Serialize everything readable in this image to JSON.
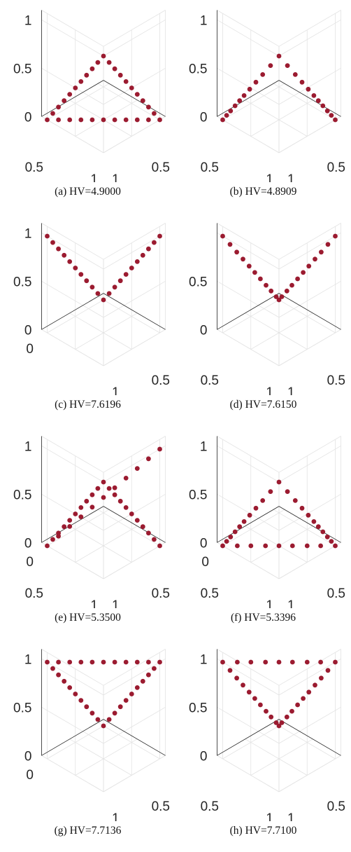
{
  "style": {
    "marker_color": "#9b1b30"
  },
  "captions": [
    "(a) HV=4.9000",
    "(b) HV=4.8909",
    "(c) HV=7.6196",
    "(d) HV=7.6150",
    "(e) HV=5.3500",
    "(f) HV=5.3396",
    "(g) HV=7.7136",
    "(h) HV=7.7100"
  ],
  "chart_data": [
    {
      "type": "scatter",
      "title": "(a) HV=4.9000",
      "zticks": [
        "0",
        "0.5",
        "1"
      ],
      "xticks": [
        "0.5",
        "1"
      ],
      "yticks": [
        "0.5",
        "1"
      ],
      "lim": [
        0,
        1.1
      ],
      "grid": true,
      "points": [
        [
          1,
          0,
          0
        ],
        [
          0.9,
          0.1,
          0
        ],
        [
          0.8,
          0.2,
          0
        ],
        [
          0.7,
          0.3,
          0
        ],
        [
          0.6,
          0.4,
          0
        ],
        [
          0.5,
          0.5,
          0
        ],
        [
          0.4,
          0.6,
          0
        ],
        [
          0.3,
          0.7,
          0
        ],
        [
          0.2,
          0.8,
          0
        ],
        [
          0.1,
          0.9,
          0
        ],
        [
          0,
          1,
          0
        ],
        [
          0.9,
          0,
          0.1
        ],
        [
          0.8,
          0,
          0.2
        ],
        [
          0.7,
          0,
          0.3
        ],
        [
          0.6,
          0,
          0.4
        ],
        [
          0.5,
          0,
          0.5
        ],
        [
          0.4,
          0,
          0.6
        ],
        [
          0.3,
          0,
          0.7
        ],
        [
          0.2,
          0,
          0.8
        ],
        [
          0.1,
          0,
          0.9
        ],
        [
          0,
          0,
          1
        ],
        [
          0,
          0.9,
          0.1
        ],
        [
          0,
          0.8,
          0.2
        ],
        [
          0,
          0.7,
          0.3
        ],
        [
          0,
          0.6,
          0.4
        ],
        [
          0,
          0.5,
          0.5
        ],
        [
          0,
          0.4,
          0.6
        ],
        [
          0,
          0.3,
          0.7
        ],
        [
          0,
          0.2,
          0.8
        ],
        [
          0,
          0.1,
          0.9
        ]
      ]
    },
    {
      "type": "scatter",
      "title": "(b) HV=4.8909",
      "zticks": [
        "0",
        "0.5",
        "1"
      ],
      "xticks": [
        "0.5",
        "1"
      ],
      "yticks": [
        "0.5",
        "1"
      ],
      "lim": [
        0,
        1.1
      ],
      "grid": true,
      "points": [
        [
          1,
          0,
          0
        ],
        [
          0.93,
          0,
          0.07
        ],
        [
          0.86,
          0,
          0.14
        ],
        [
          0.78,
          0,
          0.22
        ],
        [
          0.7,
          0,
          0.3
        ],
        [
          0.62,
          0,
          0.38
        ],
        [
          0.52,
          0,
          0.48
        ],
        [
          0.41,
          0,
          0.59
        ],
        [
          0.29,
          0,
          0.71
        ],
        [
          0.15,
          0,
          0.85
        ],
        [
          0,
          0,
          1
        ],
        [
          0,
          0.93,
          0.07
        ],
        [
          0,
          0.86,
          0.14
        ],
        [
          0,
          0.78,
          0.22
        ],
        [
          0,
          0.7,
          0.3
        ],
        [
          0,
          0.62,
          0.38
        ],
        [
          0,
          0.52,
          0.48
        ],
        [
          0,
          0.41,
          0.59
        ],
        [
          0,
          0.29,
          0.71
        ],
        [
          0,
          0.15,
          0.85
        ],
        [
          0,
          1,
          0
        ]
      ]
    },
    {
      "type": "scatter",
      "title": "(c) HV=7.6196",
      "zticks": [
        "0",
        "0.5",
        "1"
      ],
      "xticks": [
        "0.5",
        "1"
      ],
      "yticks": [
        "0"
      ],
      "lim": [
        0,
        1.1
      ],
      "grid": true,
      "points": [
        [
          1,
          1,
          0
        ],
        [
          0.9,
          1,
          0.1
        ],
        [
          0.8,
          1,
          0.2
        ],
        [
          0.7,
          1,
          0.3
        ],
        [
          0.6,
          1,
          0.4
        ],
        [
          0.5,
          1,
          0.5
        ],
        [
          0.4,
          1,
          0.6
        ],
        [
          0.3,
          1,
          0.7
        ],
        [
          0.2,
          1,
          0.8
        ],
        [
          0.1,
          1,
          0.9
        ],
        [
          0,
          1,
          1
        ],
        [
          1,
          0.9,
          0.1
        ],
        [
          1,
          0.8,
          0.2
        ],
        [
          1,
          0.7,
          0.3
        ],
        [
          1,
          0.6,
          0.4
        ],
        [
          1,
          0.5,
          0.5
        ],
        [
          1,
          0.4,
          0.6
        ],
        [
          1,
          0.3,
          0.7
        ],
        [
          1,
          0.2,
          0.8
        ],
        [
          1,
          0.1,
          0.9
        ],
        [
          1,
          0,
          1
        ]
      ]
    },
    {
      "type": "scatter",
      "title": "(d) HV=7.6150",
      "zticks": [
        "0",
        "0.5"
      ],
      "xticks": [
        "0.5",
        "1"
      ],
      "yticks": [
        "0.5",
        "1"
      ],
      "lim": [
        0,
        1.1
      ],
      "grid": true,
      "points": [
        [
          1,
          1,
          0
        ],
        [
          0.95,
          1,
          0.05
        ],
        [
          0.86,
          1,
          0.14
        ],
        [
          0.77,
          1,
          0.23
        ],
        [
          0.67,
          1,
          0.33
        ],
        [
          0.57,
          1,
          0.43
        ],
        [
          0.47,
          1,
          0.53
        ],
        [
          0.36,
          1,
          0.64
        ],
        [
          0.25,
          1,
          0.75
        ],
        [
          0.13,
          1,
          0.87
        ],
        [
          0,
          1,
          1
        ],
        [
          1,
          0.95,
          0.05
        ],
        [
          1,
          0.86,
          0.14
        ],
        [
          1,
          0.77,
          0.23
        ],
        [
          1,
          0.67,
          0.33
        ],
        [
          1,
          0.57,
          0.43
        ],
        [
          1,
          0.47,
          0.53
        ],
        [
          1,
          0.36,
          0.64
        ],
        [
          1,
          0.25,
          0.75
        ],
        [
          1,
          0.13,
          0.87
        ],
        [
          1,
          0,
          1
        ]
      ]
    },
    {
      "type": "scatter",
      "title": "(e) HV=5.3500",
      "zticks": [
        "0",
        "0.5",
        "1"
      ],
      "xticks": [
        "0.5",
        "1"
      ],
      "yticks": [
        "0",
        "0.5",
        "1"
      ],
      "lim": [
        0,
        1.1
      ],
      "grid": true,
      "points": [
        [
          1,
          0,
          0
        ],
        [
          0.9,
          0.1,
          0.1
        ],
        [
          0.8,
          0.2,
          0.2
        ],
        [
          0.7,
          0.3,
          0.3
        ],
        [
          0.6,
          0.4,
          0.4
        ],
        [
          0.5,
          0.5,
          0.5
        ],
        [
          0.4,
          0.6,
          0.6
        ],
        [
          0.3,
          0.7,
          0.7
        ],
        [
          0.2,
          0.8,
          0.8
        ],
        [
          0.1,
          0.9,
          0.9
        ],
        [
          0,
          1,
          1
        ],
        [
          0.9,
          0,
          0.1
        ],
        [
          0.8,
          0,
          0.2
        ],
        [
          0.7,
          0,
          0.3
        ],
        [
          0.6,
          0,
          0.4
        ],
        [
          0.5,
          0,
          0.5
        ],
        [
          0.4,
          0,
          0.6
        ],
        [
          0.3,
          0,
          0.7
        ],
        [
          0.2,
          0,
          0.8
        ],
        [
          0.1,
          0,
          0.9
        ],
        [
          0,
          0,
          1
        ],
        [
          0,
          0.9,
          0.1
        ],
        [
          0,
          0.8,
          0.2
        ],
        [
          0,
          0.7,
          0.3
        ],
        [
          0,
          0.6,
          0.4
        ],
        [
          0,
          0.5,
          0.5
        ],
        [
          0,
          0.4,
          0.6
        ],
        [
          0,
          0.3,
          0.7
        ],
        [
          0,
          0.2,
          0.8
        ],
        [
          0,
          0.1,
          0.9
        ],
        [
          0,
          1,
          0
        ]
      ]
    },
    {
      "type": "scatter",
      "title": "(f) HV=5.3396",
      "zticks": [
        "0",
        "0.5",
        "1"
      ],
      "xticks": [
        "0.5",
        "1"
      ],
      "yticks": [
        "0",
        "0.5",
        "1"
      ],
      "lim": [
        0,
        1.1
      ],
      "grid": true,
      "points": [
        [
          1,
          0,
          0
        ],
        [
          0.93,
          0,
          0.07
        ],
        [
          0.86,
          0,
          0.14
        ],
        [
          0.78,
          0,
          0.22
        ],
        [
          0.7,
          0,
          0.3
        ],
        [
          0.62,
          0,
          0.38
        ],
        [
          0.52,
          0,
          0.48
        ],
        [
          0.41,
          0,
          0.59
        ],
        [
          0.29,
          0,
          0.71
        ],
        [
          0.15,
          0,
          0.85
        ],
        [
          0,
          0,
          1
        ],
        [
          0,
          0.93,
          0.07
        ],
        [
          0,
          0.86,
          0.14
        ],
        [
          0,
          0.78,
          0.22
        ],
        [
          0,
          0.7,
          0.3
        ],
        [
          0,
          0.62,
          0.38
        ],
        [
          0,
          0.52,
          0.48
        ],
        [
          0,
          0.41,
          0.59
        ],
        [
          0,
          0.29,
          0.71
        ],
        [
          0,
          0.15,
          0.85
        ],
        [
          0,
          1,
          0
        ],
        [
          0.87,
          0.13,
          0
        ],
        [
          0.75,
          0.25,
          0
        ],
        [
          0.62,
          0.38,
          0
        ],
        [
          0.5,
          0.5,
          0
        ],
        [
          0.38,
          0.62,
          0
        ],
        [
          0.25,
          0.75,
          0
        ],
        [
          0.13,
          0.87,
          0
        ]
      ]
    },
    {
      "type": "scatter",
      "title": "(g) HV=7.7136",
      "zticks": [
        "0",
        "0.5",
        "1"
      ],
      "xticks": [
        "0.5",
        "1"
      ],
      "yticks": [
        "0"
      ],
      "lim": [
        0,
        1.1
      ],
      "grid": true,
      "points": [
        [
          1,
          1,
          0
        ],
        [
          0.9,
          1,
          0.1
        ],
        [
          0.8,
          1,
          0.2
        ],
        [
          0.7,
          1,
          0.3
        ],
        [
          0.6,
          1,
          0.4
        ],
        [
          0.5,
          1,
          0.5
        ],
        [
          0.4,
          1,
          0.6
        ],
        [
          0.3,
          1,
          0.7
        ],
        [
          0.2,
          1,
          0.8
        ],
        [
          0.1,
          1,
          0.9
        ],
        [
          0,
          1,
          1
        ],
        [
          1,
          0.9,
          0.1
        ],
        [
          1,
          0.8,
          0.2
        ],
        [
          1,
          0.7,
          0.3
        ],
        [
          1,
          0.6,
          0.4
        ],
        [
          1,
          0.5,
          0.5
        ],
        [
          1,
          0.4,
          0.6
        ],
        [
          1,
          0.3,
          0.7
        ],
        [
          1,
          0.2,
          0.8
        ],
        [
          1,
          0.1,
          0.9
        ],
        [
          1,
          0,
          1
        ],
        [
          0.1,
          0.9,
          1
        ],
        [
          0.2,
          0.8,
          1
        ],
        [
          0.3,
          0.7,
          1
        ],
        [
          0.4,
          0.6,
          1
        ],
        [
          0.5,
          0.5,
          1
        ],
        [
          0.6,
          0.4,
          1
        ],
        [
          0.7,
          0.3,
          1
        ],
        [
          0.8,
          0.2,
          1
        ],
        [
          0.9,
          0.1,
          1
        ]
      ]
    },
    {
      "type": "scatter",
      "title": "(h) HV=7.7100",
      "zticks": [
        "0",
        "0.5",
        "1"
      ],
      "xticks": [
        "0.5",
        "1"
      ],
      "yticks": [
        "0.5",
        "1"
      ],
      "lim": [
        0,
        1.1
      ],
      "grid": true,
      "points": [
        [
          1,
          1,
          0
        ],
        [
          0.95,
          1,
          0.05
        ],
        [
          0.86,
          1,
          0.14
        ],
        [
          0.77,
          1,
          0.23
        ],
        [
          0.67,
          1,
          0.33
        ],
        [
          0.57,
          1,
          0.43
        ],
        [
          0.47,
          1,
          0.53
        ],
        [
          0.36,
          1,
          0.64
        ],
        [
          0.25,
          1,
          0.75
        ],
        [
          0.13,
          1,
          0.87
        ],
        [
          0,
          1,
          1
        ],
        [
          1,
          0.95,
          0.05
        ],
        [
          1,
          0.86,
          0.14
        ],
        [
          1,
          0.77,
          0.23
        ],
        [
          1,
          0.67,
          0.33
        ],
        [
          1,
          0.57,
          0.43
        ],
        [
          1,
          0.47,
          0.53
        ],
        [
          1,
          0.36,
          0.64
        ],
        [
          1,
          0.25,
          0.75
        ],
        [
          1,
          0.13,
          0.87
        ],
        [
          1,
          0,
          1
        ],
        [
          0.13,
          0.87,
          1
        ],
        [
          0.25,
          0.75,
          1
        ],
        [
          0.38,
          0.62,
          1
        ],
        [
          0.5,
          0.5,
          1
        ],
        [
          0.62,
          0.38,
          1
        ],
        [
          0.75,
          0.25,
          1
        ],
        [
          0.87,
          0.13,
          1
        ]
      ]
    }
  ]
}
